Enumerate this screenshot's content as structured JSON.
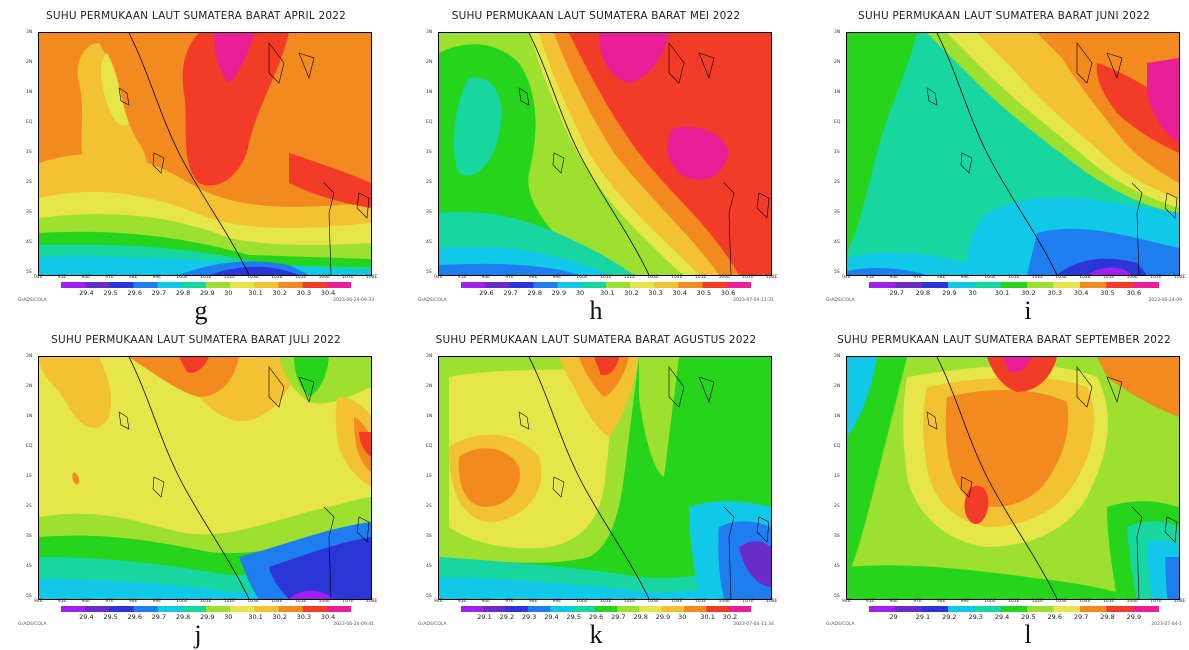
{
  "panels": [
    {
      "id": "g",
      "title": "SUHU PERMUKAAN LAUT SUMATERA BARAT APRIL 2022",
      "letter": "g",
      "colorbar": [
        "29.4",
        "29.5",
        "29.6",
        "29.7",
        "29.8",
        "29.9",
        "30",
        "30.1",
        "30.2",
        "30.3",
        "30.4"
      ],
      "footer_left": "GrADS/COLA",
      "footer_right": "2023-06-24-09:33",
      "x_ticks": [
        "94E",
        "95E",
        "96E",
        "97E",
        "98E",
        "99E",
        "100E",
        "101E",
        "102E",
        "103E",
        "104E",
        "105E",
        "106E",
        "107E",
        "108E"
      ],
      "y_ticks": [
        "3N",
        "2N",
        "1N",
        "EQ",
        "1S",
        "2S",
        "3S",
        "4S",
        "5S"
      ]
    },
    {
      "id": "h",
      "title": "SUHU PERMUKAAN LAUT SUMATERA BARAT MEI 2022",
      "letter": "h",
      "colorbar": [
        "29.6",
        "29.7",
        "29.8",
        "29.9",
        "30",
        "30.1",
        "30.2",
        "30.3",
        "30.4",
        "30.5",
        "30.6"
      ],
      "footer_left": "GrADS/COLA",
      "footer_right": "2023-07-04-11:31",
      "x_ticks": [
        "94E",
        "95E",
        "96E",
        "97E",
        "98E",
        "99E",
        "100E",
        "101E",
        "102E",
        "103E",
        "104E",
        "105E",
        "106E",
        "107E",
        "108E"
      ],
      "y_ticks": [
        "3N",
        "2N",
        "1N",
        "EQ",
        "1S",
        "2S",
        "3S",
        "4S",
        "5S"
      ]
    },
    {
      "id": "i",
      "title": "SUHU PERMUKAAN LAUT SUMATERA BARAT JUNI 2022",
      "letter": "i",
      "colorbar": [
        "29.7",
        "29.8",
        "29.9",
        "30",
        "30.1",
        "30.2",
        "30.3",
        "30.4",
        "30.5",
        "30.6"
      ],
      "footer_left": "GrADS/COLA",
      "footer_right": "2023-06-24-09",
      "x_ticks": [
        "94E",
        "95E",
        "96E",
        "97E",
        "98E",
        "99E",
        "100E",
        "101E",
        "102E",
        "103E",
        "104E",
        "105E",
        "106E",
        "107E",
        "108E"
      ],
      "y_ticks": [
        "3N",
        "2N",
        "1N",
        "EQ",
        "1S",
        "2S",
        "3S",
        "4S",
        "5S"
      ]
    },
    {
      "id": "j",
      "title": "SUHU PERMUKAAN LAUT SUMATERA BARAT JULI 2022",
      "letter": "j",
      "colorbar": [
        "29.4",
        "29.5",
        "29.6",
        "29.7",
        "29.8",
        "29.9",
        "30",
        "30.1",
        "30.2",
        "30.3",
        "30.4"
      ],
      "footer_left": "GrADS/COLA",
      "footer_right": "2023-06-24-09:41",
      "x_ticks": [
        "94E",
        "95E",
        "96E",
        "97E",
        "98E",
        "99E",
        "100E",
        "101E",
        "102E",
        "103E",
        "104E",
        "105E",
        "106E",
        "107E",
        "108E"
      ],
      "y_ticks": [
        "3N",
        "2N",
        "1N",
        "EQ",
        "1S",
        "2S",
        "3S",
        "4S",
        "5S"
      ]
    },
    {
      "id": "k",
      "title": "SUHU PERMUKAAN LAUT SUMATERA BARAT AGUSTUS 2022",
      "letter": "k",
      "colorbar": [
        "29.1",
        "29.2",
        "29.3",
        "29.4",
        "29.5",
        "29.6",
        "29.7",
        "29.8",
        "29.9",
        "30",
        "30.1",
        "30.2"
      ],
      "footer_left": "GrADS/COLA",
      "footer_right": "2023-07-04-11:34",
      "x_ticks": [
        "94E",
        "95E",
        "96E",
        "97E",
        "98E",
        "99E",
        "100E",
        "101E",
        "102E",
        "103E",
        "104E",
        "105E",
        "106E",
        "107E",
        "108E"
      ],
      "y_ticks": [
        "3N",
        "2N",
        "1N",
        "EQ",
        "1S",
        "2S",
        "3S",
        "4S",
        "5S"
      ]
    },
    {
      "id": "l",
      "title": "SUHU PERMUKAAN LAUT SUMATERA BARAT SEPTEMBER 2022",
      "letter": "l",
      "colorbar": [
        "29",
        "29.1",
        "29.2",
        "29.3",
        "29.4",
        "29.5",
        "29.6",
        "29.7",
        "29.8",
        "29.9"
      ],
      "footer_left": "GrADS/COLA",
      "footer_right": "2023-07-04-1",
      "x_ticks": [
        "94E",
        "95E",
        "96E",
        "97E",
        "98E",
        "99E",
        "100E",
        "101E",
        "102E",
        "103E",
        "104E",
        "105E",
        "106E",
        "107E",
        "108E"
      ],
      "y_ticks": [
        "3N",
        "2N",
        "1N",
        "EQ",
        "1S",
        "2S",
        "3S",
        "4S",
        "5S"
      ]
    }
  ],
  "palette": [
    "#a020f0",
    "#6a2cc8",
    "#2a36d8",
    "#1e7ef0",
    "#10c8e8",
    "#17d6a0",
    "#26d41c",
    "#9ee030",
    "#e6e64a",
    "#f2c232",
    "#f28a20",
    "#f23c28",
    "#ea1e96"
  ]
}
